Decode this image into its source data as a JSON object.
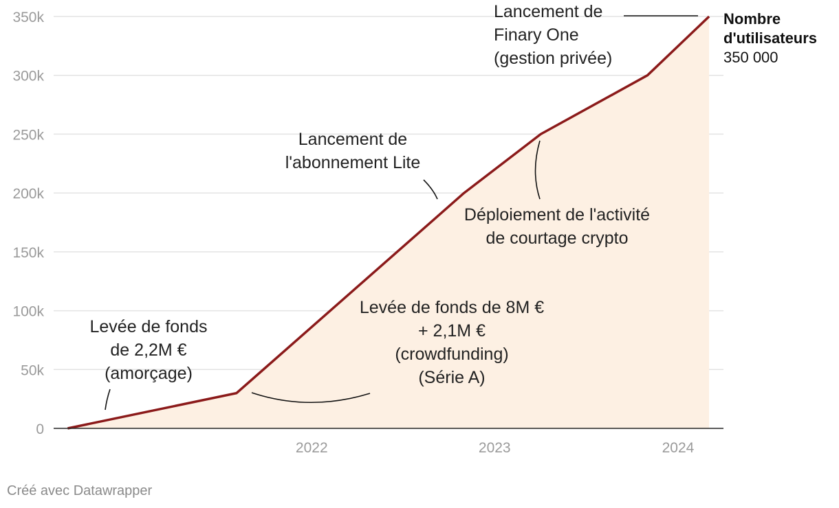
{
  "chart_data": {
    "type": "area",
    "x": [
      "2021-03",
      "2022-02",
      "2023-05",
      "2023-10",
      "2024-05",
      "2024-09"
    ],
    "series": [
      {
        "values": [
          0,
          30000,
          200000,
          250000,
          300000,
          350000
        ]
      }
    ],
    "xticks": [
      "2022",
      "2023",
      "2024"
    ],
    "yticks": [
      "0",
      "50k",
      "100k",
      "150k",
      "200k",
      "250k",
      "300k",
      "350k"
    ],
    "ylim": [
      0,
      350000
    ],
    "grid": true,
    "line_color": "#8b1a1a",
    "fill_color": "#fdf0e3",
    "end_label": {
      "title": [
        "Nombre",
        "d'utilisateurs"
      ],
      "value": "350 000"
    },
    "annotations": [
      {
        "lines": [
          "Levée de fonds",
          "de 2,2M €",
          "(amorçage)"
        ]
      },
      {
        "lines": [
          "Levée de fonds de 8M €",
          "+ 2,1M €",
          "(crowdfunding)",
          "(Série A)"
        ]
      },
      {
        "lines": [
          "Lancement de",
          "l'abonnement Lite"
        ]
      },
      {
        "lines": [
          "Déploiement de l'activité",
          "de courtage crypto"
        ]
      },
      {
        "lines": [
          "Lancement de",
          "Finary One",
          "(gestion privée)"
        ]
      }
    ]
  },
  "footer": {
    "credit": "Créé avec Datawrapper"
  }
}
